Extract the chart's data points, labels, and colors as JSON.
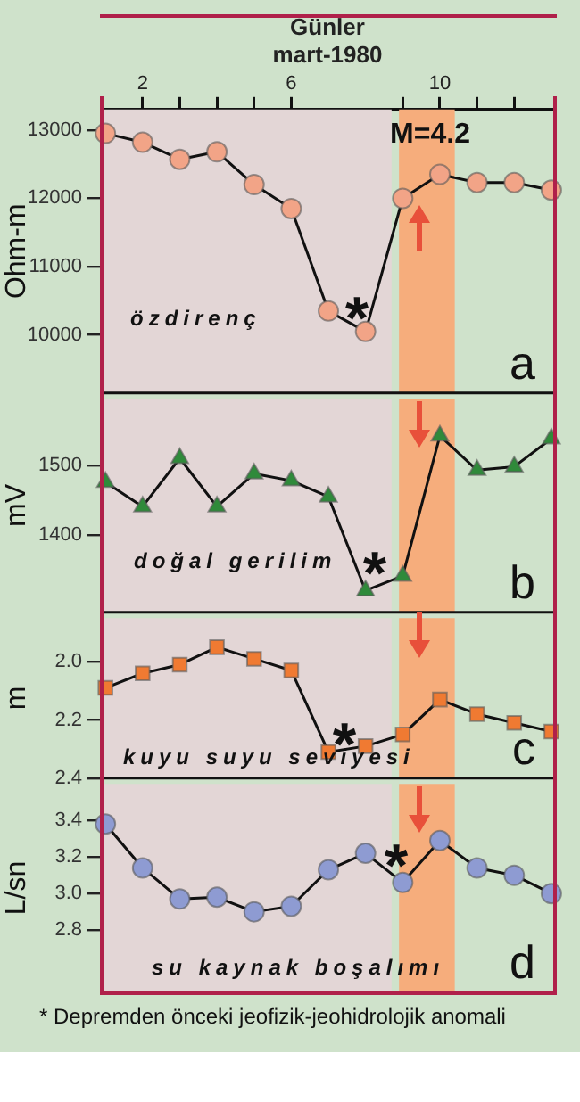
{
  "chart_data": [
    {
      "type": "line",
      "xlabel": "Günler\nmart-1980",
      "ylabel": "Ohm-m",
      "marker": "circle",
      "x": [
        1,
        2,
        3,
        4,
        5,
        6,
        7,
        8,
        9,
        10,
        11,
        12,
        13
      ],
      "series": [
        {
          "color": "#f2a487",
          "values": [
            12950,
            12820,
            12570,
            12680,
            12200,
            11850,
            10350,
            10050,
            12000,
            12350,
            12230,
            12230,
            12120
          ]
        }
      ],
      "xlim": [
        0.9,
        13.05
      ],
      "xticks": [
        2,
        {
          "value": 3,
          "label": null
        },
        {
          "value": 4,
          "label": null
        },
        {
          "value": 5,
          "label": null
        },
        6,
        {
          "value": 9,
          "label": null
        },
        10,
        {
          "value": 11,
          "label": null
        },
        {
          "value": 12,
          "label": null
        }
      ],
      "ylim": [
        9150,
        13300
      ],
      "yticks": [
        10000,
        11000,
        12000,
        13000
      ],
      "bands": [
        {
          "axis": "x",
          "from": 0.9,
          "to": 8.7,
          "color": "#e3d6d6"
        },
        {
          "axis": "x",
          "from": 8.9,
          "to": 10.4,
          "color": "#f6ad7c"
        }
      ],
      "annotations": [
        "özdirenç",
        "a",
        "*",
        "M=4.2"
      ]
    },
    {
      "type": "line",
      "ylabel": "mV",
      "marker": "triangle",
      "tick_labels": "y",
      "x": [
        1,
        2,
        3,
        4,
        5,
        6,
        7,
        8,
        9,
        10,
        11,
        12,
        13
      ],
      "series": [
        {
          "color": "#2f8a3a",
          "values": [
            1476,
            1441,
            1510,
            1441,
            1488,
            1478,
            1455,
            1321,
            1342,
            1542,
            1493,
            1498,
            1538
          ]
        }
      ],
      "xlim": [
        0.9,
        13.05
      ],
      "ylim": [
        1290,
        1595
      ],
      "yticks": [
        1400,
        1500
      ],
      "bands": [
        {
          "axis": "x",
          "from": 0.9,
          "to": 8.7,
          "color": "#e3d6d6"
        },
        {
          "axis": "x",
          "from": 8.9,
          "to": 10.4,
          "color": "#f6ad7c"
        }
      ],
      "annotations": [
        "doğal gerilim",
        "b",
        "*"
      ]
    },
    {
      "type": "line",
      "ylabel": "m",
      "marker": "square",
      "tick_labels": "y",
      "x": [
        1,
        2,
        3,
        4,
        5,
        6,
        7,
        8,
        9,
        10,
        11,
        12,
        13
      ],
      "series": [
        {
          "color": "#f07a32",
          "values": [
            2.09,
            2.04,
            2.01,
            1.95,
            1.99,
            2.03,
            2.31,
            2.29,
            2.25,
            2.13,
            2.18,
            2.21,
            2.24
          ]
        }
      ],
      "xlim": [
        0.9,
        13.05
      ],
      "ylim": [
        2.4,
        1.85
      ],
      "yticks": [
        {
          "value": 2,
          "label": "2.0"
        },
        {
          "value": 2.2,
          "label": "2.2"
        },
        {
          "value": 2.4,
          "label": "2.4"
        }
      ],
      "bands": [
        {
          "axis": "x",
          "from": 0.9,
          "to": 8.7,
          "color": "#e3d6d6"
        },
        {
          "axis": "x",
          "from": 8.9,
          "to": 10.4,
          "color": "#f6ad7c"
        }
      ],
      "annotations": [
        "kuyu suyu seviyesi",
        "c",
        "*"
      ]
    },
    {
      "type": "line",
      "ylabel": "L/sn",
      "marker": "circle",
      "tick_labels": "y",
      "x": [
        1,
        2,
        3,
        4,
        5,
        6,
        7,
        8,
        9,
        10,
        11,
        12,
        13
      ],
      "series": [
        {
          "color": "#8e9bd2",
          "values": [
            3.38,
            3.14,
            2.97,
            2.98,
            2.9,
            2.93,
            3.13,
            3.22,
            3.06,
            3.29,
            3.14,
            3.1,
            3.0
          ]
        }
      ],
      "xlim": [
        0.9,
        13.05
      ],
      "ylim": [
        2.46,
        3.6
      ],
      "yticks": [
        {
          "value": 2.8,
          "label": "2.8"
        },
        {
          "value": 3,
          "label": "3.0"
        },
        {
          "value": 3.2,
          "label": "3.2"
        },
        {
          "value": 3.4,
          "label": "3.4"
        }
      ],
      "bands": [
        {
          "axis": "x",
          "from": 0.9,
          "to": 8.7,
          "color": "#e3d6d6"
        },
        {
          "axis": "x",
          "from": 8.9,
          "to": 10.4,
          "color": "#f6ad7c"
        }
      ],
      "annotations": [
        "su kaynak boşalımı",
        "d",
        "*",
        "* Depremden önceki jeofizik-jeohidrolojik anomali"
      ]
    }
  ]
}
